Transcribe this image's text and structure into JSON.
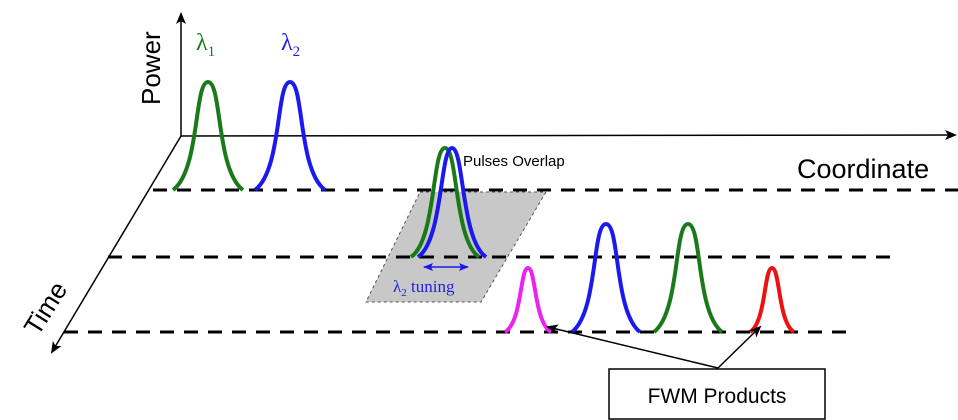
{
  "axes": {
    "power": "Power",
    "coordinate": "Coordinate",
    "time": "Time"
  },
  "labels": {
    "lambda1": {
      "symbol": "λ",
      "sub": "1"
    },
    "lambda2": {
      "symbol": "λ",
      "sub": "2"
    },
    "overlap": "Pulses Overlap",
    "tuning": {
      "symbol": "λ",
      "sub": "2",
      "text": " tuning"
    },
    "fwm": "FWM Products"
  },
  "colors": {
    "green": "#1a7a1a",
    "blue": "#1a1aee",
    "magenta": "#ee22ee",
    "red": "#ee1111",
    "shade": "#c8c8c8",
    "lambda_label_green": "#1a7a1a",
    "lambda_label_blue": "#2222dd"
  }
}
